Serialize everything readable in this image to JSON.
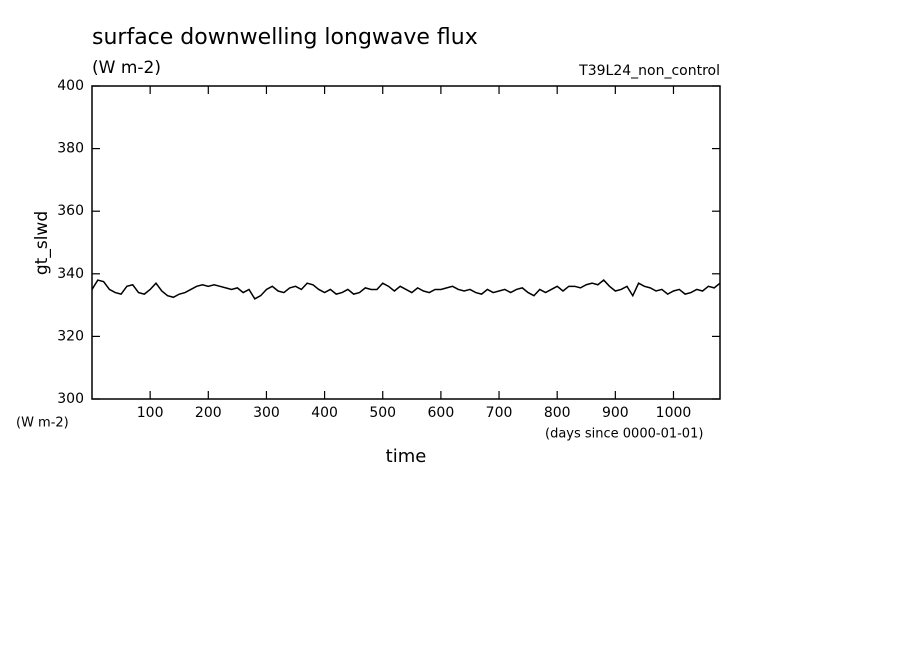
{
  "chart_data": {
    "type": "line",
    "title": "surface downwelling longwave flux",
    "subtitle": "(W m-2)",
    "annotation": "T39L24_non_control",
    "y_label": "gt_slwd",
    "y_unit": "(W m-2)",
    "x_label": "time",
    "x_unit": "(days since 0000-01-01)",
    "x": [
      0,
      10,
      20,
      30,
      40,
      50,
      60,
      70,
      80,
      90,
      100,
      110,
      120,
      130,
      140,
      150,
      160,
      170,
      180,
      190,
      200,
      210,
      220,
      230,
      240,
      250,
      260,
      270,
      280,
      290,
      300,
      310,
      320,
      330,
      340,
      350,
      360,
      370,
      380,
      390,
      400,
      410,
      420,
      430,
      440,
      450,
      460,
      470,
      480,
      490,
      500,
      510,
      520,
      530,
      540,
      550,
      560,
      570,
      580,
      590,
      600,
      610,
      620,
      630,
      640,
      650,
      660,
      670,
      680,
      690,
      700,
      710,
      720,
      730,
      740,
      750,
      760,
      770,
      780,
      790,
      800,
      810,
      820,
      830,
      840,
      850,
      860,
      870,
      880,
      890,
      900,
      910,
      920,
      930,
      940,
      950,
      960,
      970,
      980,
      990,
      1000,
      1010,
      1020,
      1030,
      1040,
      1050,
      1060,
      1070,
      1080
    ],
    "series": [
      {
        "name": "gt_slwd",
        "color": "#000000",
        "values": [
          335,
          338,
          337.5,
          335,
          334,
          333.5,
          336,
          336.5,
          334,
          333.5,
          335,
          337,
          334.5,
          333,
          332.5,
          333.5,
          334,
          335,
          336,
          336.5,
          336,
          336.5,
          336,
          335.5,
          335,
          335.5,
          334,
          335,
          332,
          333,
          335,
          336,
          334.5,
          334,
          335.5,
          336,
          335,
          337,
          336.5,
          335,
          334,
          335,
          333.5,
          334,
          335,
          333.5,
          334,
          335.5,
          335,
          335,
          337,
          336,
          334.5,
          336,
          335,
          334,
          335.5,
          334.5,
          334,
          335,
          335,
          335.5,
          336,
          335,
          334.5,
          335,
          334,
          333.5,
          335,
          334,
          334.5,
          335,
          334,
          335,
          335.5,
          334,
          333,
          335,
          334,
          335,
          336,
          334.5,
          336,
          336,
          335.5,
          336.5,
          337,
          336.5,
          338,
          336,
          334.5,
          335,
          336,
          333,
          337,
          336,
          335.5,
          334.5,
          335,
          333.5,
          334.5,
          335,
          333.5,
          334,
          335,
          334.5,
          336,
          335.5,
          337
        ]
      }
    ],
    "xlim": [
      0,
      1080
    ],
    "ylim": [
      300,
      400
    ],
    "xticks": [
      100,
      200,
      300,
      400,
      500,
      600,
      700,
      800,
      900,
      1000
    ],
    "yticks": [
      300,
      320,
      340,
      360,
      380,
      400
    ],
    "grid": false
  }
}
